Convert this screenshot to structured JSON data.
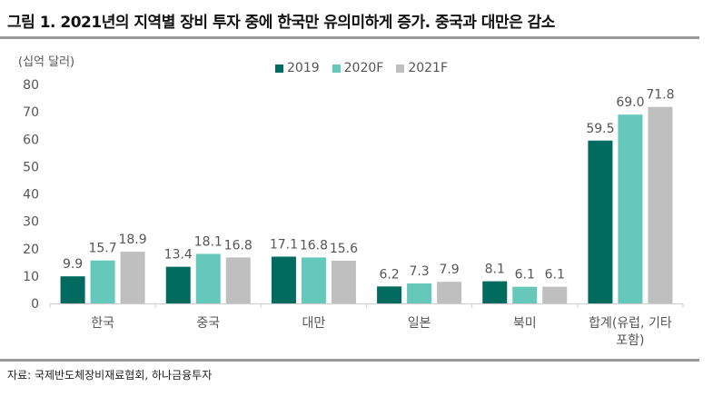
{
  "title": "그림 1. 2021년의 지역별 장비 투자 중에 한국만 유의미하게 증가. 중국과 대만은 감소",
  "source": "자료: 국제반도체장비재료협회, 하나금융투자",
  "chart_data": {
    "type": "bar",
    "title": "그림 1. 2021년의 지역별 장비 투자 중에 한국만 유의미하게 증가. 중국과 대만은 감소",
    "ylabel": "(십억 달러)",
    "xlabel": "",
    "ylim": [
      0,
      80
    ],
    "yticks": [
      0,
      10,
      20,
      30,
      40,
      50,
      60,
      70,
      80
    ],
    "grid": false,
    "legend_position": "top-center",
    "categories": [
      "한국",
      "중국",
      "대만",
      "일본",
      "북미",
      [
        "합계(유럽, 기타",
        "포함)"
      ]
    ],
    "series": [
      {
        "name": "2019",
        "color": "#006B5E",
        "values": [
          9.9,
          13.4,
          17.1,
          6.2,
          8.1,
          59.5
        ],
        "labels": [
          "9.9",
          "13.4",
          "17.1",
          "6.2",
          "8.1",
          "59.5"
        ]
      },
      {
        "name": "2020F",
        "color": "#66C8BA",
        "values": [
          15.7,
          18.1,
          16.8,
          7.3,
          6.1,
          69.0
        ],
        "labels": [
          "15.7",
          "18.1",
          "16.8",
          "7.3",
          "6.1",
          "69.0"
        ]
      },
      {
        "name": "2021F",
        "color": "#BFBFBF",
        "values": [
          18.9,
          16.8,
          15.6,
          7.9,
          6.1,
          71.8
        ],
        "labels": [
          "18.9",
          "16.8",
          "15.6",
          "7.9",
          "6.1",
          "71.8"
        ]
      }
    ]
  }
}
